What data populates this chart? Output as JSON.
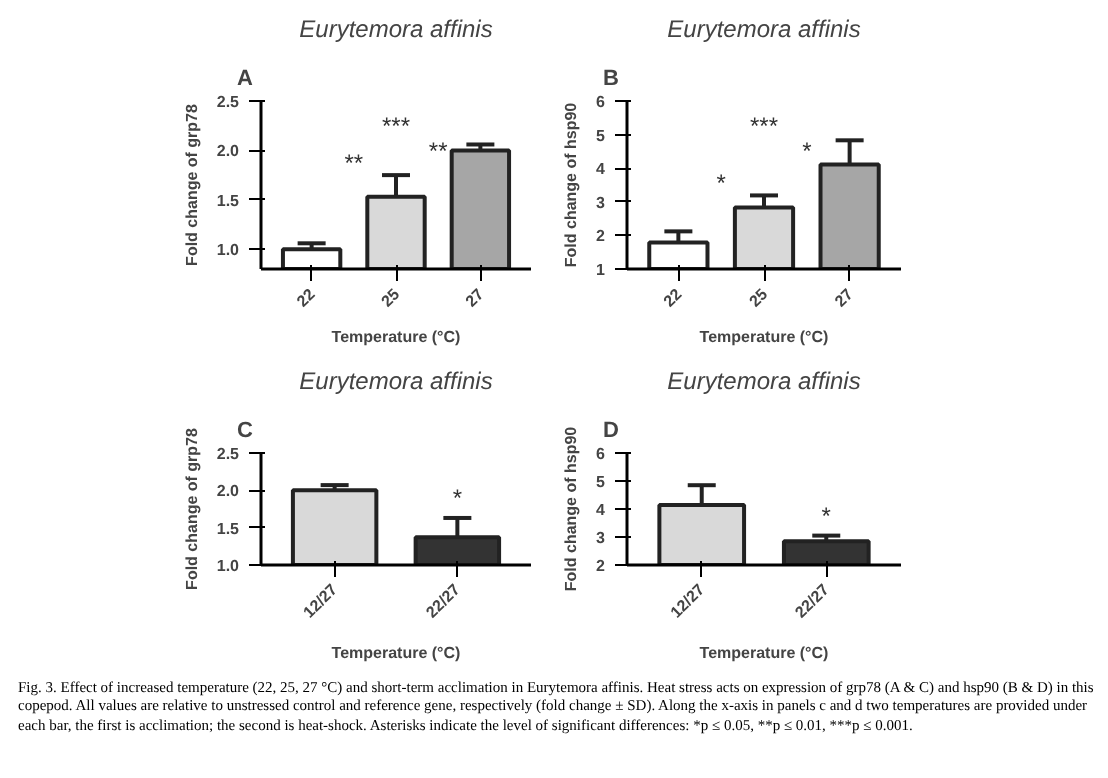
{
  "chart_data": [
    {
      "type": "bar",
      "title": "Eurytemora affinis",
      "xlabel": "Temperature (°C)",
      "ylabel": "Fold change of grp78",
      "categories": [
        "22",
        "25",
        "27"
      ],
      "values": [
        1.0,
        1.53,
        2.0
      ],
      "colors": [
        "#ffffff",
        "#d9d9d9",
        "#a6a6a6"
      ],
      "errors": [
        [
          1.0,
          1.06
        ],
        [
          1.53,
          1.75
        ],
        [
          2.0,
          2.06
        ]
      ],
      "ylim": [
        0.8,
        2.5
      ],
      "yticks": [
        {
          "value": 1,
          "label": "1.0"
        },
        {
          "value": 1.5,
          "label": "1.5"
        },
        {
          "value": 2,
          "label": "2.0"
        },
        {
          "value": 2.5,
          "label": "2.5"
        }
      ],
      "annotations": [
        "A",
        "**",
        "**",
        "***"
      ]
    },
    {
      "type": "bar",
      "title": "Eurytemora affinis",
      "xlabel": "Temperature (°C)",
      "ylabel": "Fold change of hsp90",
      "categories": [
        "22",
        "25",
        "27"
      ],
      "values": [
        1.79,
        2.83,
        4.11
      ],
      "colors": [
        "#ffffff",
        "#d9d9d9",
        "#a6a6a6"
      ],
      "errors": [
        [
          1.79,
          2.12
        ],
        [
          2.83,
          3.19
        ],
        [
          4.11,
          4.83
        ]
      ],
      "ylim": [
        1,
        6
      ],
      "yticks": [
        1,
        2,
        3,
        4,
        5,
        6
      ],
      "annotations": [
        "B",
        "*",
        "*",
        "***"
      ]
    },
    {
      "type": "bar",
      "title": "Eurytemora affinis",
      "xlabel": "Temperature (°C)",
      "ylabel": "Fold change of grp78",
      "categories": [
        "12/27",
        "22/27"
      ],
      "values": [
        2.0,
        1.37
      ],
      "colors": [
        "#d9d9d9",
        "#333333"
      ],
      "errors": [
        [
          2.0,
          2.07
        ],
        [
          1.37,
          1.63
        ]
      ],
      "ylim": [
        1,
        2.5
      ],
      "yticks": [
        {
          "value": 1,
          "label": "1.0"
        },
        {
          "value": 1.5,
          "label": "1.5"
        },
        {
          "value": 2,
          "label": "2.0"
        },
        {
          "value": 2.5,
          "label": "2.5"
        }
      ],
      "annotations": [
        "C",
        "*"
      ]
    },
    {
      "type": "bar",
      "title": "Eurytemora affinis",
      "xlabel": "Temperature (°C)",
      "ylabel": "Fold change of hsp90",
      "categories": [
        "12/27",
        "22/27"
      ],
      "values": [
        4.14,
        2.85
      ],
      "colors": [
        "#d9d9d9",
        "#333333"
      ],
      "errors": [
        [
          4.14,
          4.85
        ],
        [
          2.85,
          3.05
        ]
      ],
      "ylim": [
        2,
        6
      ],
      "yticks": [
        2,
        3,
        4,
        5,
        6
      ],
      "annotations": [
        "D",
        "*",
        "Fig. 3. Effect of increased temperature (22, 25, 27 °C) and short-term acclimation in Eurytemora affinis. Heat stress acts on expression of grp78 (A & C) and hsp90 (B & D) in this copepod. All values are relative to unstressed control and reference gene, respectively (fold change ± SD). Along the x-axis in panels c and d two temperatures are provided under each bar, the first is acclimation; the second is heat-shock. Asterisks indicate the level of significant differences: *p ≤ 0.05, **p ≤ 0.01, ***p ≤ 0.001."
      ]
    }
  ]
}
